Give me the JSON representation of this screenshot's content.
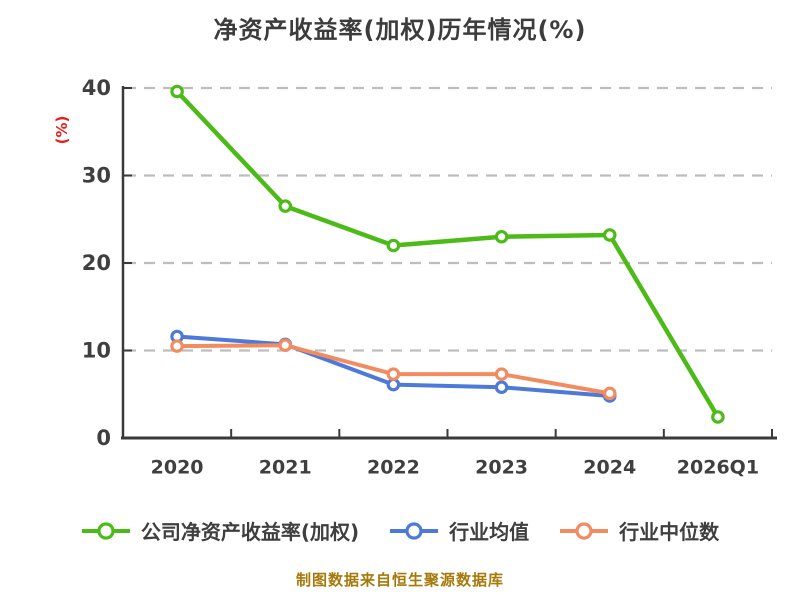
{
  "caption": "制图数据来自恒生聚源数据库",
  "colors": {
    "title": "#3c3c3c",
    "label": "#3f3f3f",
    "axis": "#3a3a3a",
    "grid": "#bdbdbd",
    "ylabel": "#e32119",
    "caption": "#a6790a"
  },
  "chart_data": {
    "type": "line",
    "title": "净资产收益率(加权)历年情况(%)",
    "ylabel": "(%)",
    "xlabel": "",
    "categories": [
      "2020",
      "2021",
      "2022",
      "2023",
      "2024",
      "2026Q1"
    ],
    "series": [
      {
        "key": "company-roe-weighted",
        "name": "公司净资产收益率(加权)",
        "color": "#4cbb17",
        "values": [
          39.6,
          26.5,
          22.0,
          23.0,
          23.2,
          2.4
        ]
      },
      {
        "key": "industry-mean",
        "name": "行业均值",
        "color": "#4d79d9",
        "values": [
          11.6,
          10.7,
          6.1,
          5.8,
          4.8,
          null
        ]
      },
      {
        "key": "industry-median",
        "name": "行业中位数",
        "color": "#f28c60",
        "values": [
          10.5,
          10.6,
          7.3,
          7.3,
          5.1,
          null
        ]
      }
    ],
    "ylim": [
      0,
      40
    ],
    "yticks": [
      0,
      10,
      20,
      30,
      40
    ],
    "grid": "horizontal-dashed",
    "legend_position": "bottom"
  }
}
